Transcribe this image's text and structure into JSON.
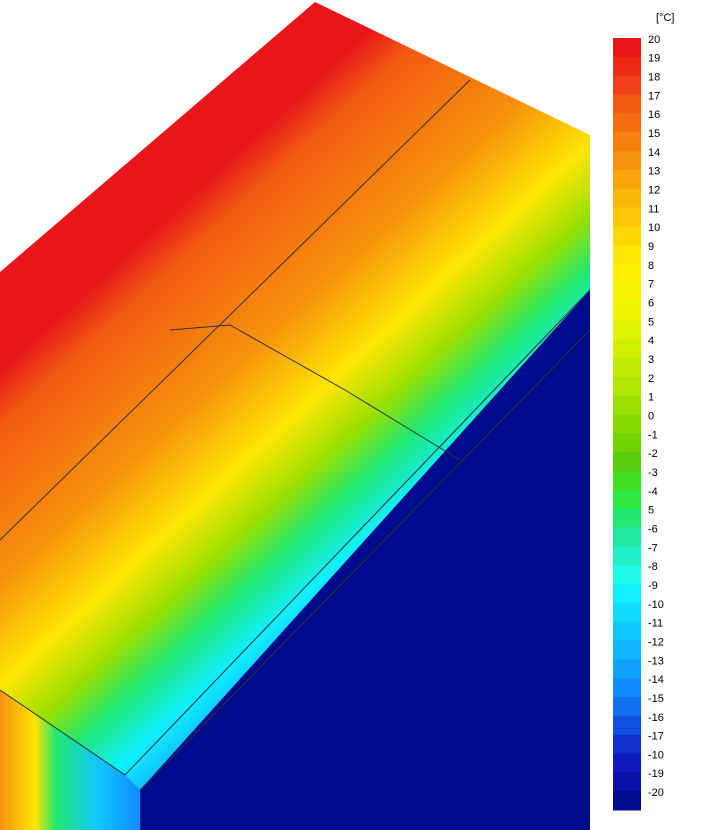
{
  "legend": {
    "unit": "[°C]",
    "items": [
      {
        "label": "20",
        "color": "#e8151b"
      },
      {
        "label": "19",
        "color": "#ec2a17"
      },
      {
        "label": "18",
        "color": "#f04016"
      },
      {
        "label": "17",
        "color": "#f25a12"
      },
      {
        "label": "16",
        "color": "#f46e10"
      },
      {
        "label": "15",
        "color": "#f5800e"
      },
      {
        "label": "14",
        "color": "#f7920c"
      },
      {
        "label": "13",
        "color": "#f9a40a"
      },
      {
        "label": "12",
        "color": "#fbb708"
      },
      {
        "label": "11",
        "color": "#fdc806"
      },
      {
        "label": "10",
        "color": "#ffd804"
      },
      {
        "label": "9",
        "color": "#ffe603"
      },
      {
        "label": "8",
        "color": "#fff200"
      },
      {
        "label": "7",
        "color": "#f8f500"
      },
      {
        "label": "6",
        "color": "#eef700"
      },
      {
        "label": "5",
        "color": "#e0f500"
      },
      {
        "label": "4",
        "color": "#d0f000"
      },
      {
        "label": "3",
        "color": "#bfeb00"
      },
      {
        "label": "2",
        "color": "#aee600"
      },
      {
        "label": "1",
        "color": "#9ae000"
      },
      {
        "label": "0",
        "color": "#86da00"
      },
      {
        "label": "-1",
        "color": "#6fd400"
      },
      {
        "label": "-2",
        "color": "#58cd10"
      },
      {
        "label": "-3",
        "color": "#40e020"
      },
      {
        "label": "-4",
        "color": "#2fe840"
      },
      {
        "label": "5",
        "color": "#20e870"
      },
      {
        "label": "-6",
        "color": "#20eaa0"
      },
      {
        "label": "-7",
        "color": "#20f0c8"
      },
      {
        "label": "-8",
        "color": "#20f8e8"
      },
      {
        "label": "-9",
        "color": "#10f0ff"
      },
      {
        "label": "-10",
        "color": "#10dcff"
      },
      {
        "label": "-11",
        "color": "#10c8ff"
      },
      {
        "label": "-12",
        "color": "#10b4ff"
      },
      {
        "label": "-13",
        "color": "#10a0ff"
      },
      {
        "label": "-14",
        "color": "#108cff"
      },
      {
        "label": "-15",
        "color": "#1070f0"
      },
      {
        "label": "-16",
        "color": "#1050e0"
      },
      {
        "label": "-17",
        "color": "#1030d0"
      },
      {
        "label": "-10",
        "color": "#1018c0"
      },
      {
        "label": "-19",
        "color": "#0a10a8"
      },
      {
        "label": "-20",
        "color": "#000a8c"
      }
    ]
  }
}
